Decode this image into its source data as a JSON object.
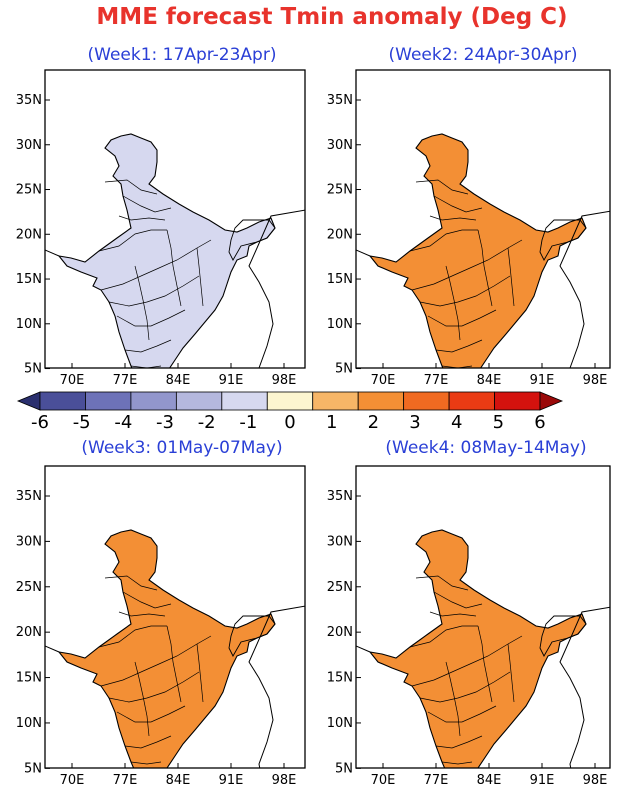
{
  "title": "MME forecast Tmin anomaly (Deg C)",
  "colors": {
    "title": "#e8332c",
    "panel_title": "#2a3fd6",
    "map_border": "#000000",
    "ocean": "#ffffff"
  },
  "x_ticks": [
    "70E",
    "77E",
    "84E",
    "91E",
    "98E"
  ],
  "y_ticks": [
    "35N",
    "30N",
    "25N",
    "20N",
    "15N",
    "10N",
    "5N"
  ],
  "panels": [
    {
      "title": "(Week1: 17Apr-23Apr)",
      "anomaly_scheme": "cool"
    },
    {
      "title": "(Week2: 24Apr-30Apr)",
      "anomaly_scheme": "warm"
    },
    {
      "title": "(Week3: 01May-07May)",
      "anomaly_scheme": "warm"
    },
    {
      "title": "(Week4: 08May-14May)",
      "anomaly_scheme": "warm-mixed"
    }
  ],
  "colorbar": {
    "labels": [
      "-6",
      "-5",
      "-4",
      "-3",
      "-2",
      "-1",
      "0",
      "1",
      "2",
      "3",
      "4",
      "5",
      "6"
    ],
    "colors": [
      "#2a2f6e",
      "#4a4f99",
      "#6d72b8",
      "#9296cc",
      "#b5b8de",
      "#d6d8ef",
      "#fdf6d0",
      "#f7b667",
      "#f38f35",
      "#f06a21",
      "#ea3b14",
      "#d4120e",
      "#9a0909"
    ]
  }
}
